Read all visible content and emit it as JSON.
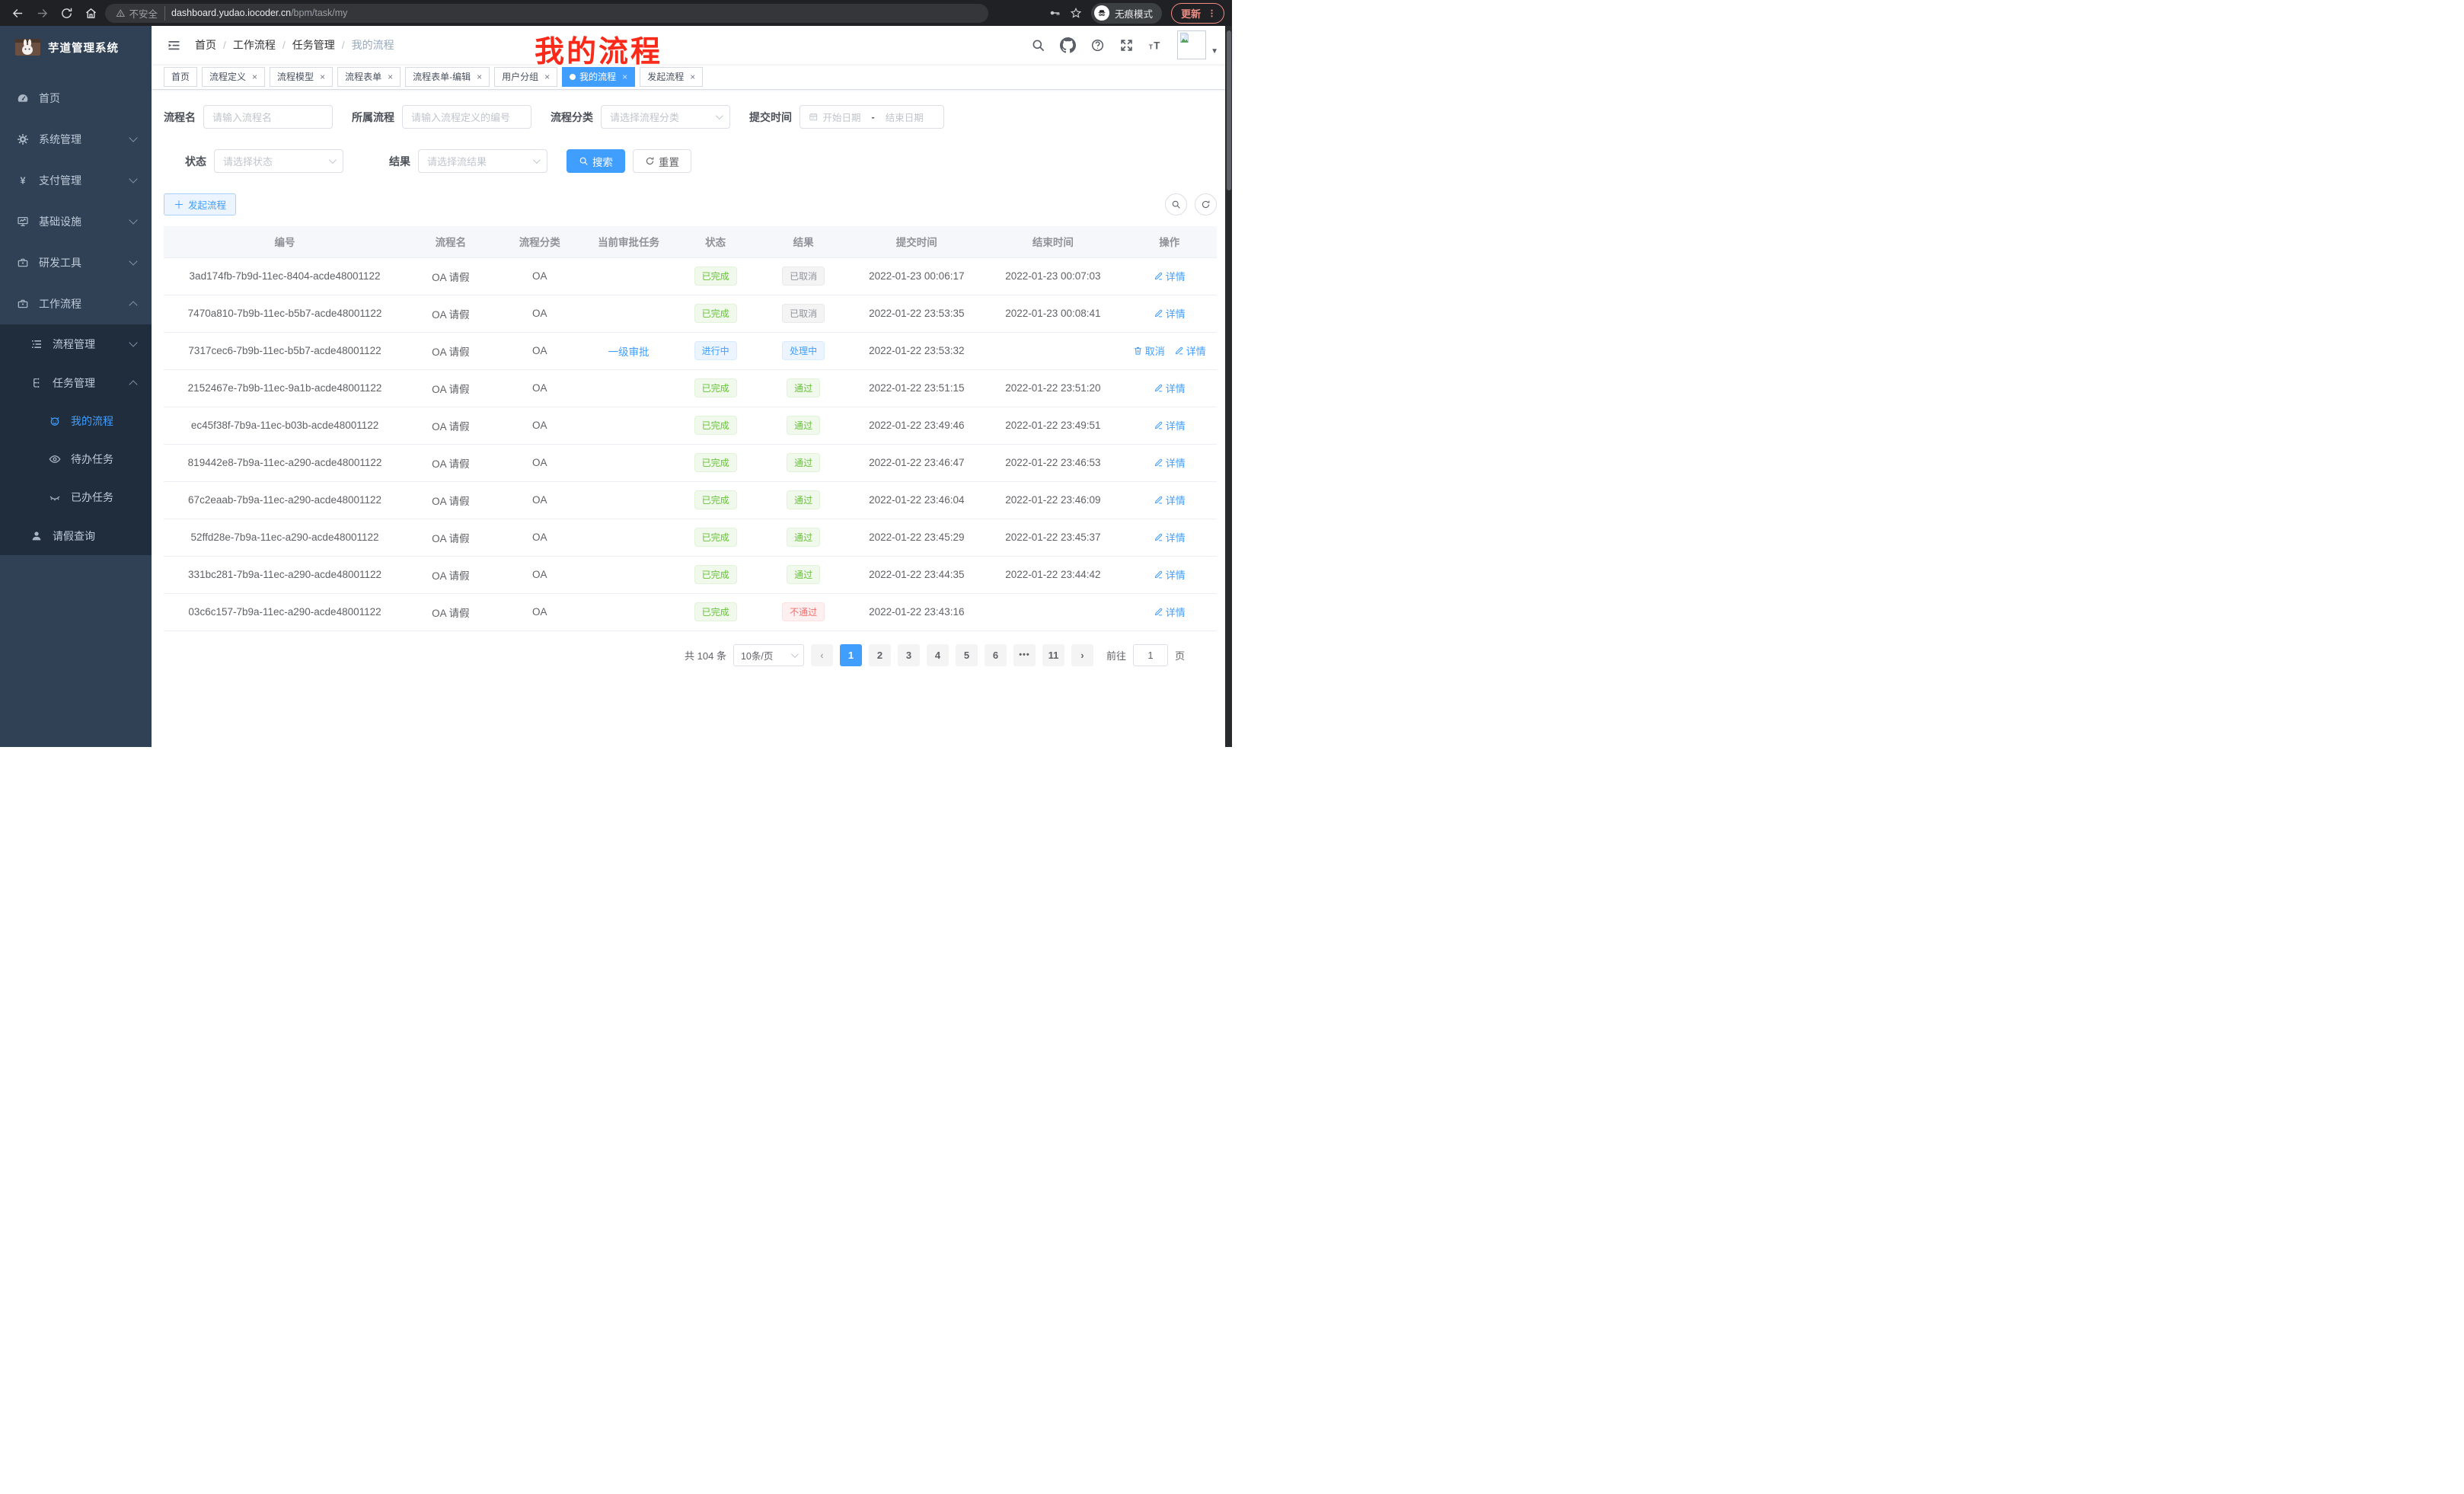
{
  "browser": {
    "security_label": "不安全",
    "url_host": "dashboard.yudao.iocoder.cn",
    "url_path": "/bpm/task/my",
    "incognito_label": "无痕模式",
    "update_label": "更新"
  },
  "annotation": {
    "text": "我的流程",
    "color": "#fa2a1a"
  },
  "sidebar": {
    "app_title": "芋道管理系统",
    "items": [
      {
        "label": "首页",
        "icon": "gauge",
        "level": 1
      },
      {
        "label": "系统管理",
        "icon": "gear",
        "level": 1,
        "arrow": "down"
      },
      {
        "label": "支付管理",
        "icon": "yen",
        "level": 1,
        "arrow": "down"
      },
      {
        "label": "基础设施",
        "icon": "monitor",
        "level": 1,
        "arrow": "down"
      },
      {
        "label": "研发工具",
        "icon": "toolbox",
        "level": 1,
        "arrow": "down"
      },
      {
        "label": "工作流程",
        "icon": "toolbox",
        "level": 1,
        "arrow": "up"
      },
      {
        "label": "流程管理",
        "icon": "list",
        "level": 2,
        "arrow": "down"
      },
      {
        "label": "任务管理",
        "icon": "tree",
        "level": 2,
        "arrow": "up"
      },
      {
        "label": "我的流程",
        "icon": "robot",
        "level": 3,
        "active": true
      },
      {
        "label": "待办任务",
        "icon": "eye",
        "level": 3
      },
      {
        "label": "已办任务",
        "icon": "eye-closed",
        "level": 3
      },
      {
        "label": "请假查询",
        "icon": "user",
        "level": 2
      }
    ]
  },
  "navbar": {
    "breadcrumb": [
      "首页",
      "工作流程",
      "任务管理",
      "我的流程"
    ]
  },
  "tabs": [
    {
      "label": "首页",
      "closable": false,
      "active": false
    },
    {
      "label": "流程定义",
      "closable": true,
      "active": false
    },
    {
      "label": "流程模型",
      "closable": true,
      "active": false
    },
    {
      "label": "流程表单",
      "closable": true,
      "active": false
    },
    {
      "label": "流程表单-编辑",
      "closable": true,
      "active": false
    },
    {
      "label": "用户分组",
      "closable": true,
      "active": false
    },
    {
      "label": "我的流程",
      "closable": true,
      "active": true
    },
    {
      "label": "发起流程",
      "closable": true,
      "active": false
    }
  ],
  "filters": {
    "row1": [
      {
        "label": "流程名",
        "type": "input",
        "placeholder": "请输入流程名"
      },
      {
        "label": "所属流程",
        "type": "input",
        "placeholder": "请输入流程定义的编号"
      },
      {
        "label": "流程分类",
        "type": "select",
        "placeholder": "请选择流程分类"
      },
      {
        "label": "提交时间",
        "type": "daterange",
        "start_placeholder": "开始日期",
        "separator": "-",
        "end_placeholder": "结束日期"
      }
    ],
    "row2": [
      {
        "label": "状态",
        "type": "select",
        "placeholder": "请选择状态"
      },
      {
        "label": "结果",
        "type": "select",
        "placeholder": "请选择流结果"
      }
    ],
    "search_label": "搜索",
    "reset_label": "重置"
  },
  "toolbar": {
    "create_label": "发起流程"
  },
  "table": {
    "headers": [
      "编号",
      "流程名",
      "流程分类",
      "当前审批任务",
      "状态",
      "结果",
      "提交时间",
      "结束时间",
      "操作"
    ],
    "rows": [
      {
        "id": "3ad174fb-7b9d-11ec-8404-acde48001122",
        "name": "OA 请假",
        "category": "OA",
        "task": "",
        "status": {
          "label": "已完成",
          "type": "success"
        },
        "result": {
          "label": "已取消",
          "type": "info"
        },
        "submit_time": "2022-01-23 00:06:17",
        "end_time": "2022-01-23 00:07:03",
        "ops": [
          {
            "label": "详情",
            "icon": "pen"
          }
        ]
      },
      {
        "id": "7470a810-7b9b-11ec-b5b7-acde48001122",
        "name": "OA 请假",
        "category": "OA",
        "task": "",
        "status": {
          "label": "已完成",
          "type": "success"
        },
        "result": {
          "label": "已取消",
          "type": "info"
        },
        "submit_time": "2022-01-22 23:53:35",
        "end_time": "2022-01-23 00:08:41",
        "ops": [
          {
            "label": "详情",
            "icon": "pen"
          }
        ]
      },
      {
        "id": "7317cec6-7b9b-11ec-b5b7-acde48001122",
        "name": "OA 请假",
        "category": "OA",
        "task": "一级审批",
        "status": {
          "label": "进行中",
          "type": "primary"
        },
        "result": {
          "label": "处理中",
          "type": "primary"
        },
        "submit_time": "2022-01-22 23:53:32",
        "end_time": "",
        "ops": [
          {
            "label": "取消",
            "icon": "trash"
          },
          {
            "label": "详情",
            "icon": "pen"
          }
        ]
      },
      {
        "id": "2152467e-7b9b-11ec-9a1b-acde48001122",
        "name": "OA 请假",
        "category": "OA",
        "task": "",
        "status": {
          "label": "已完成",
          "type": "success"
        },
        "result": {
          "label": "通过",
          "type": "success"
        },
        "submit_time": "2022-01-22 23:51:15",
        "end_time": "2022-01-22 23:51:20",
        "ops": [
          {
            "label": "详情",
            "icon": "pen"
          }
        ]
      },
      {
        "id": "ec45f38f-7b9a-11ec-b03b-acde48001122",
        "name": "OA 请假",
        "category": "OA",
        "task": "",
        "status": {
          "label": "已完成",
          "type": "success"
        },
        "result": {
          "label": "通过",
          "type": "success"
        },
        "submit_time": "2022-01-22 23:49:46",
        "end_time": "2022-01-22 23:49:51",
        "ops": [
          {
            "label": "详情",
            "icon": "pen"
          }
        ]
      },
      {
        "id": "819442e8-7b9a-11ec-a290-acde48001122",
        "name": "OA 请假",
        "category": "OA",
        "task": "",
        "status": {
          "label": "已完成",
          "type": "success"
        },
        "result": {
          "label": "通过",
          "type": "success"
        },
        "submit_time": "2022-01-22 23:46:47",
        "end_time": "2022-01-22 23:46:53",
        "ops": [
          {
            "label": "详情",
            "icon": "pen"
          }
        ]
      },
      {
        "id": "67c2eaab-7b9a-11ec-a290-acde48001122",
        "name": "OA 请假",
        "category": "OA",
        "task": "",
        "status": {
          "label": "已完成",
          "type": "success"
        },
        "result": {
          "label": "通过",
          "type": "success"
        },
        "submit_time": "2022-01-22 23:46:04",
        "end_time": "2022-01-22 23:46:09",
        "ops": [
          {
            "label": "详情",
            "icon": "pen"
          }
        ]
      },
      {
        "id": "52ffd28e-7b9a-11ec-a290-acde48001122",
        "name": "OA 请假",
        "category": "OA",
        "task": "",
        "status": {
          "label": "已完成",
          "type": "success"
        },
        "result": {
          "label": "通过",
          "type": "success"
        },
        "submit_time": "2022-01-22 23:45:29",
        "end_time": "2022-01-22 23:45:37",
        "ops": [
          {
            "label": "详情",
            "icon": "pen"
          }
        ]
      },
      {
        "id": "331bc281-7b9a-11ec-a290-acde48001122",
        "name": "OA 请假",
        "category": "OA",
        "task": "",
        "status": {
          "label": "已完成",
          "type": "success"
        },
        "result": {
          "label": "通过",
          "type": "success"
        },
        "submit_time": "2022-01-22 23:44:35",
        "end_time": "2022-01-22 23:44:42",
        "ops": [
          {
            "label": "详情",
            "icon": "pen"
          }
        ]
      },
      {
        "id": "03c6c157-7b9a-11ec-a290-acde48001122",
        "name": "OA 请假",
        "category": "OA",
        "task": "",
        "status": {
          "label": "已完成",
          "type": "success"
        },
        "result": {
          "label": "不通过",
          "type": "danger"
        },
        "submit_time": "2022-01-22 23:43:16",
        "end_time": "",
        "ops": [
          {
            "label": "详情",
            "icon": "pen"
          }
        ]
      }
    ]
  },
  "pagination": {
    "total_text": "共 104 条",
    "page_size": "10条/页",
    "pages": [
      "1",
      "2",
      "3",
      "4",
      "5",
      "6",
      "•••",
      "11"
    ],
    "active_page": "1",
    "goto_label": "前往",
    "goto_value": "1",
    "goto_suffix": "页"
  },
  "colors": {
    "primary": "#409eff",
    "success": "#67c23a",
    "info": "#909399",
    "danger": "#f56c6c"
  }
}
